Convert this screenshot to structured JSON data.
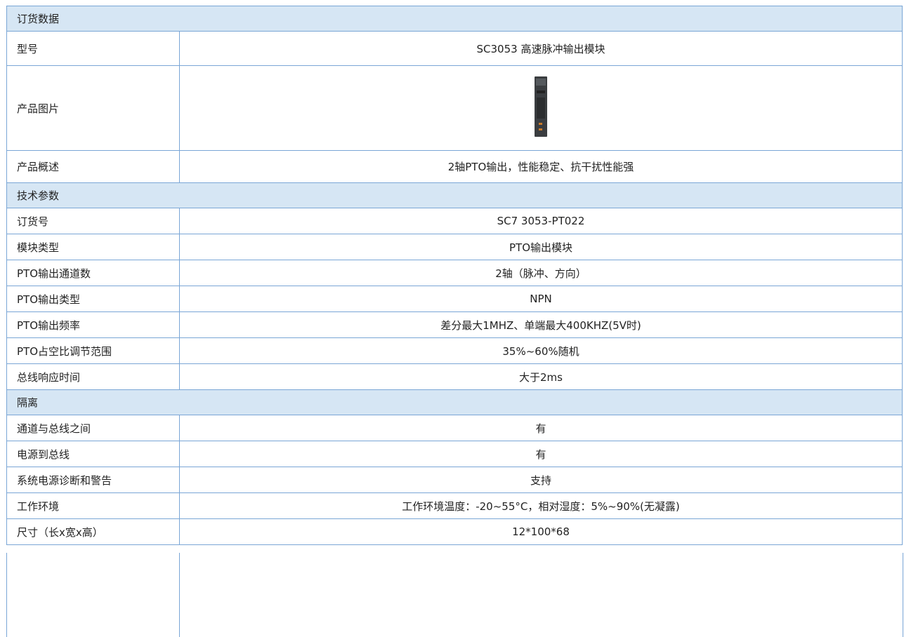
{
  "sections": [
    {
      "title": "订货数据",
      "rows": [
        {
          "label": "型号",
          "value": "SC3053 高速脉冲输出模块"
        },
        {
          "label": "产品图片"
        },
        {
          "label": "产品概述",
          "value": "2轴PTO输出，性能稳定、抗干扰性能强"
        }
      ]
    },
    {
      "title": "技术参数",
      "rows": [
        {
          "label": "订货号",
          "value": "SC7 3053-PT022"
        },
        {
          "label": "模块类型",
          "value": "PTO输出模块"
        },
        {
          "label": "PTO输出通道数",
          "value": "2轴（脉冲、方向）"
        },
        {
          "label": "PTO输出类型",
          "value": "NPN"
        },
        {
          "label": "PTO输出频率",
          "value": "差分最大1MHZ、单端最大400KHZ(5V时)"
        },
        {
          "label": "PTO占空比调节范围",
          "value": "35%~60%随机"
        },
        {
          "label": "总线响应时间",
          "value": "大于2ms"
        }
      ]
    },
    {
      "title": "隔离",
      "rows": [
        {
          "label": "通道与总线之间",
          "value": "有"
        },
        {
          "label": "电源到总线",
          "value": "有"
        },
        {
          "label": "系统电源诊断和警告",
          "value": "支持"
        },
        {
          "label": "工作环境",
          "value": "工作环境温度：-20~55°C，相对湿度：5%~90%(无凝露)"
        },
        {
          "label": "尺寸（长x宽x高）",
          "value": "12*100*68"
        }
      ]
    }
  ]
}
